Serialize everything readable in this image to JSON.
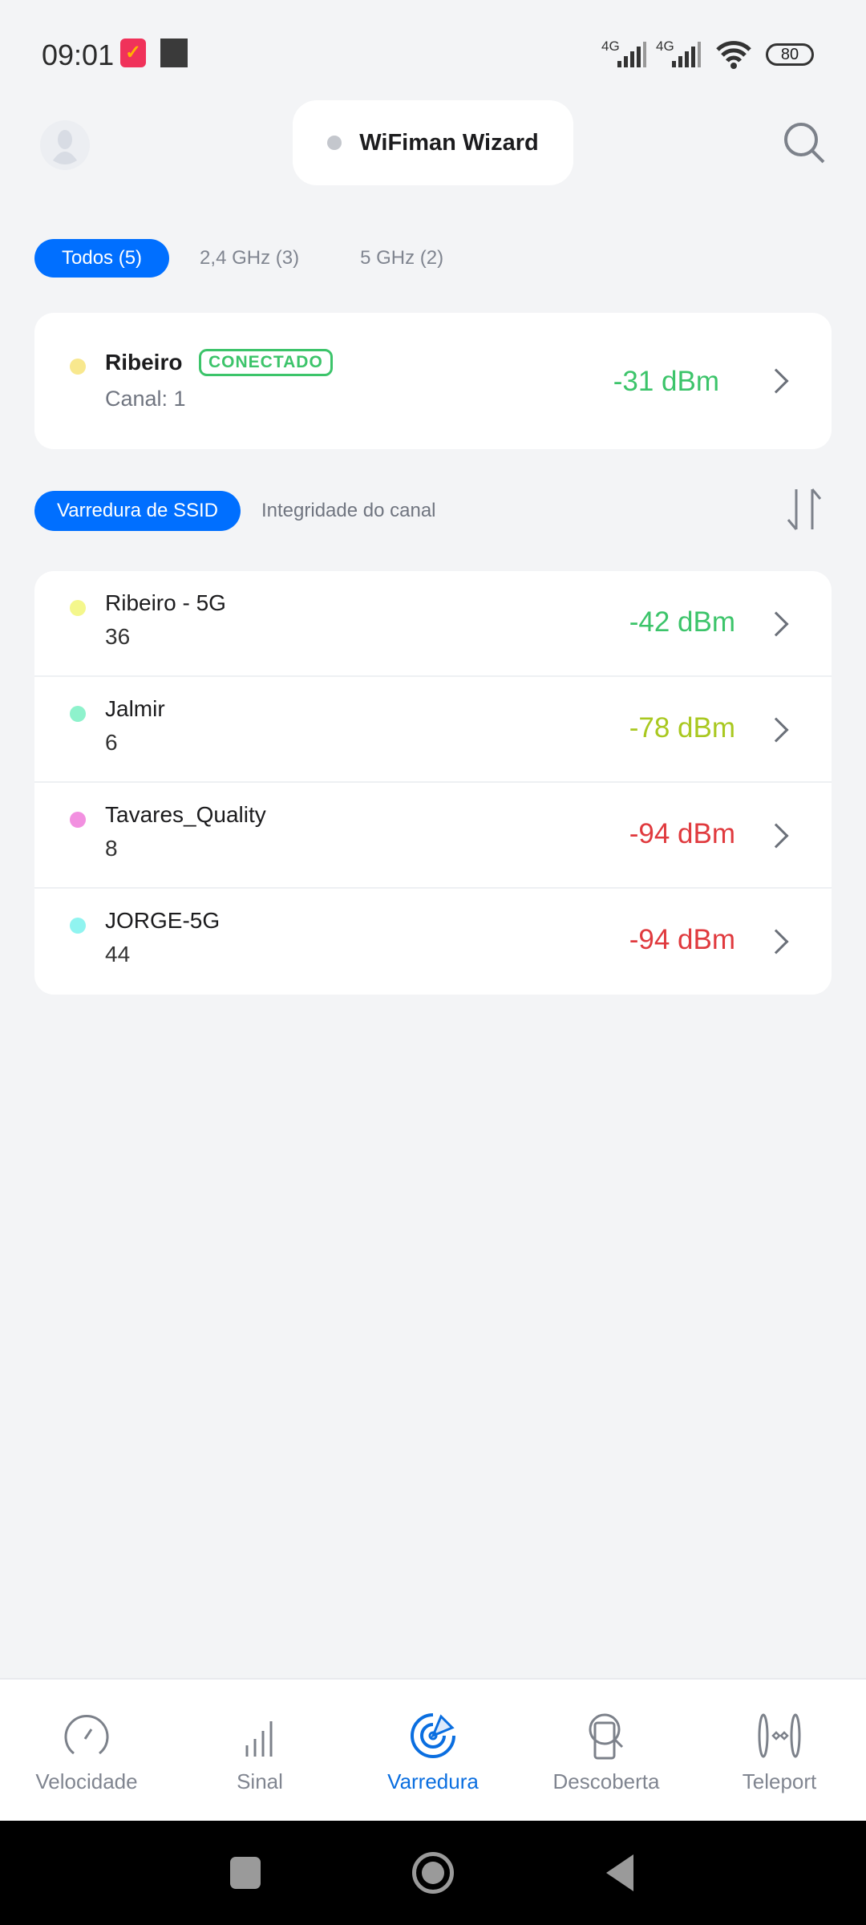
{
  "status_bar": {
    "time": "09:01",
    "network1": "4G",
    "network2": "4G",
    "battery": "80"
  },
  "header": {
    "title": "WiFiman Wizard",
    "avatar_icon": "user-avatar-icon",
    "search_icon": "search-icon"
  },
  "band_tabs": [
    {
      "label": "Todos (5)",
      "active": true
    },
    {
      "label": "2,4 GHz (3)",
      "active": false
    },
    {
      "label": "5 GHz (2)",
      "active": false
    }
  ],
  "connected": {
    "ssid": "Ribeiro",
    "badge": "CONECTADO",
    "channel": "Canal: 1",
    "signal": "-31 dBm",
    "dot_color": "#f8e88e",
    "signal_color": "#3cc46a"
  },
  "view_tabs": [
    {
      "label": "Varredura de SSID",
      "active": true
    },
    {
      "label": "Integridade do canal",
      "active": false
    }
  ],
  "networks": [
    {
      "ssid": "Ribeiro - 5G",
      "channel": "36",
      "signal": "-42 dBm",
      "dot_color": "#f4f78c",
      "signal_color": "#3cc46a"
    },
    {
      "ssid": "Jalmir",
      "channel": "6",
      "signal": "-78 dBm",
      "dot_color": "#8ef2cc",
      "signal_color": "#a9c820"
    },
    {
      "ssid": "Tavares_Quality",
      "channel": "8",
      "signal": "-94 dBm",
      "dot_color": "#f290e0",
      "signal_color": "#e03a3e"
    },
    {
      "ssid": "JORGE-5G",
      "channel": "44",
      "signal": "-94 dBm",
      "dot_color": "#90f4f0",
      "signal_color": "#e03a3e"
    }
  ],
  "bottom_nav": [
    {
      "label": "Velocidade",
      "icon": "speedometer-icon"
    },
    {
      "label": "Sinal",
      "icon": "signal-bars-icon"
    },
    {
      "label": "Varredura",
      "icon": "radar-icon",
      "active": true
    },
    {
      "label": "Descoberta",
      "icon": "device-discovery-icon"
    },
    {
      "label": "Teleport",
      "icon": "teleport-icon"
    }
  ],
  "accent": "#006fff"
}
